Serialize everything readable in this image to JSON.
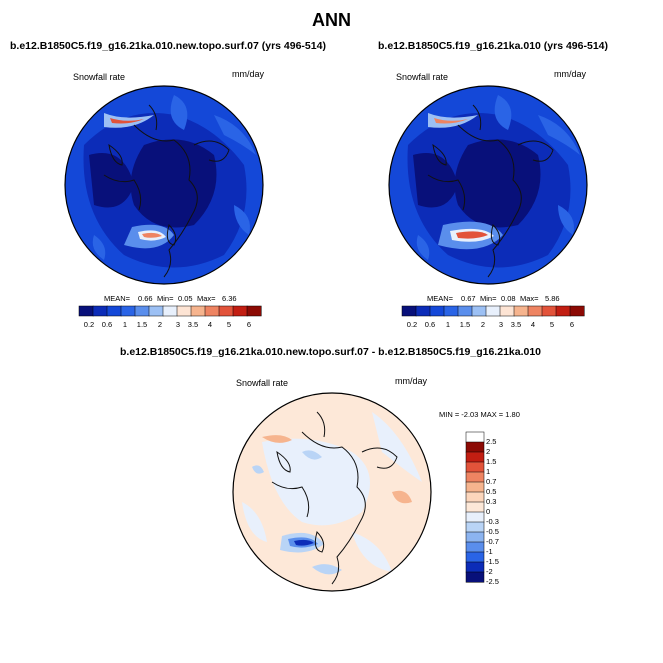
{
  "title": "ANN",
  "colors": {
    "abs_scale": [
      "#08107a",
      "#0c2cb8",
      "#1448d8",
      "#2a64e6",
      "#5a8eec",
      "#9cc0f4",
      "#e8f0fc",
      "#fde4d4",
      "#f6b48e",
      "#ee8462",
      "#e2533a",
      "#c21e12",
      "#8c0a04"
    ],
    "diff_scale": [
      "#ffffff",
      "#8c0a04",
      "#c21e12",
      "#e2533a",
      "#ee8462",
      "#f6b48e",
      "#fcd6bc",
      "#fde8d8",
      "#e8f0fc",
      "#b9d4f6",
      "#8cb4f0",
      "#5a8eec",
      "#2a64e6",
      "#0c2cb8",
      "#08107a"
    ]
  },
  "panels": {
    "left": {
      "case": "b.e12.B1850C5.f19_g16.21ka.010.new.topo.surf.07 (yrs 496-514)",
      "variable": "Snowfall rate",
      "units": "mm/day",
      "mean_label": "MEAN=",
      "mean": "0.66",
      "min_label": "Min=",
      "min": "0.05",
      "max_label": "Max=",
      "max": "6.36"
    },
    "right": {
      "case": "b.e12.B1850C5.f19_g16.21ka.010 (yrs 496-514)",
      "variable": "Snowfall rate",
      "units": "mm/day",
      "mean_label": "MEAN=",
      "mean": "0.67",
      "min_label": "Min=",
      "min": "0.08",
      "max_label": "Max=",
      "max": "5.86"
    },
    "diff": {
      "case": "b.e12.B1850C5.f19_g16.21ka.010.new.topo.surf.07 - b.e12.B1850C5.f19_g16.21ka.010",
      "variable": "Snowfall rate",
      "units": "mm/day",
      "minmax_text": "MIN = -2.03 MAX =  1.80"
    }
  },
  "abs_ticks": [
    "0.2",
    "0.6",
    "1",
    "1.5",
    "2",
    "3",
    "3.5",
    "4",
    "5",
    "6"
  ],
  "diff_ticks": [
    "2.5",
    "2",
    "1.5",
    "1",
    "0.7",
    "0.5",
    "0.3",
    "0",
    "-0.3",
    "-0.5",
    "-0.7",
    "-1",
    "-1.5",
    "-2",
    "-2.5"
  ]
}
